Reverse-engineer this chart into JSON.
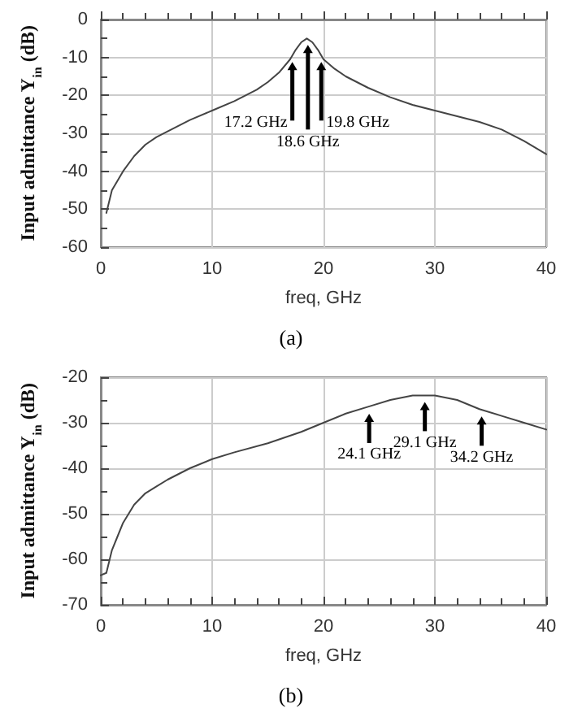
{
  "chart_data": [
    {
      "type": "line",
      "xlabel": "freq, GHz",
      "ylabel": "Input admittance Y$_{in}$ (dB)",
      "xlim": [
        0,
        40
      ],
      "xticks": [
        0,
        10,
        20,
        30,
        40
      ],
      "ylim": [
        -60,
        0
      ],
      "yticks": [
        -60,
        -50,
        -40,
        -30,
        -20,
        -10,
        0
      ],
      "grid": true,
      "marker": "none",
      "line_style": "solid",
      "series": [
        {
          "color": "#444444",
          "x": [
            0.5,
            1,
            2,
            3,
            4,
            5,
            6,
            8,
            10,
            12,
            14,
            15,
            16,
            17,
            17.5,
            18,
            18.5,
            19,
            19.5,
            20,
            21,
            22,
            24,
            26,
            28,
            30,
            32,
            34,
            36,
            38,
            40
          ],
          "values": [
            -51,
            -45,
            -40,
            -36,
            -33,
            -31,
            -29.5,
            -26.5,
            -24,
            -21.5,
            -18.5,
            -16.5,
            -14,
            -10.5,
            -8,
            -6,
            -5,
            -6,
            -8,
            -10.5,
            -13,
            -15,
            -18,
            -20.5,
            -22.5,
            -24,
            -25.5,
            -27,
            -29,
            -32,
            -35.5
          ]
        }
      ],
      "annotations": [
        {
          "text": "17.2 GHz",
          "x": 17.2,
          "y": -9.5
        },
        {
          "text": "18.6 GHz",
          "x": 18.6,
          "y": -5
        },
        {
          "text": "19.8 GHz",
          "x": 19.8,
          "y": -9.5
        },
        "(a)"
      ]
    },
    {
      "type": "line",
      "xlabel": "freq, GHz",
      "ylabel": "Input admittance Y$_{in}$ (dB)",
      "xlim": [
        0,
        40
      ],
      "xticks": [
        0,
        10,
        20,
        30,
        40
      ],
      "ylim": [
        -70,
        -20
      ],
      "yticks": [
        -70,
        -60,
        -50,
        -40,
        -30,
        -20
      ],
      "grid": true,
      "marker": "none",
      "line_style": "solid",
      "series": [
        {
          "color": "#444444",
          "x": [
            0,
            0.5,
            0.8,
            1,
            1.5,
            2,
            3,
            4,
            5,
            6,
            8,
            10,
            12,
            15,
            18,
            20,
            22,
            24,
            26,
            28,
            30,
            32,
            34,
            36,
            38,
            40
          ],
          "values": [
            -63.5,
            -63,
            -60,
            -58,
            -55,
            -52,
            -48,
            -45.5,
            -44,
            -42.5,
            -40,
            -38,
            -36.5,
            -34.5,
            -32,
            -30,
            -28,
            -26.5,
            -25,
            -24,
            -24,
            -25,
            -27,
            -28.5,
            -30,
            -31.5
          ]
        }
      ],
      "annotations": [
        {
          "text": "24.1 GHz",
          "x": 24.1,
          "y": -26.6
        },
        {
          "text": "29.1 GHz",
          "x": 29.1,
          "y": -24
        },
        {
          "text": "34.2 GHz",
          "x": 34.2,
          "y": -27.2
        },
        "(b)"
      ]
    }
  ]
}
